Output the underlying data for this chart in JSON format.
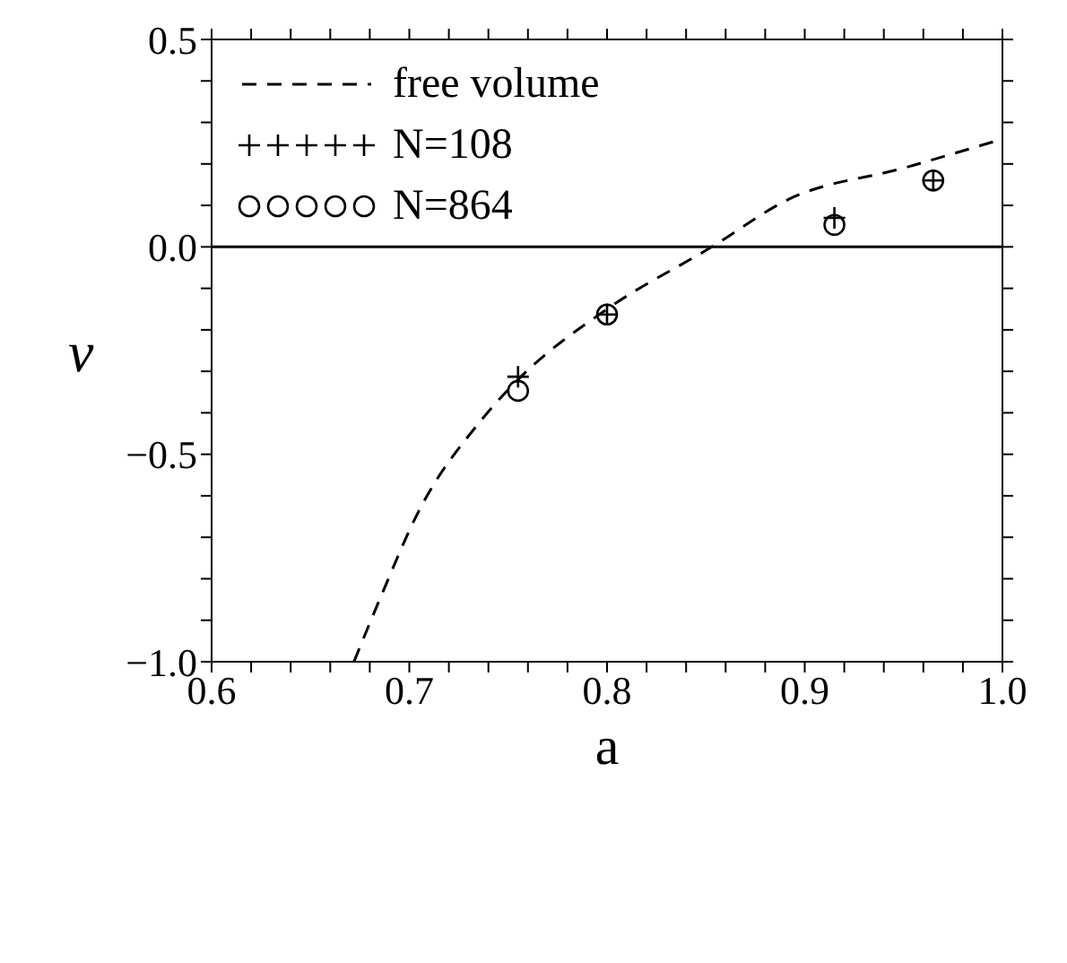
{
  "chart_data": {
    "type": "scatter",
    "xlabel": "a",
    "ylabel": "ν",
    "xlim": [
      0.6,
      1.0
    ],
    "ylim": [
      -1.0,
      0.5
    ],
    "xticks": [
      0.6,
      {
        "value": 0.62,
        "label": null
      },
      {
        "value": 0.64,
        "label": null
      },
      {
        "value": 0.66,
        "label": null
      },
      {
        "value": 0.68,
        "label": null
      },
      0.7,
      {
        "value": 0.72,
        "label": null
      },
      {
        "value": 0.74,
        "label": null
      },
      {
        "value": 0.76,
        "label": null
      },
      {
        "value": 0.78,
        "label": null
      },
      0.8,
      {
        "value": 0.82,
        "label": null
      },
      {
        "value": 0.84,
        "label": null
      },
      {
        "value": 0.86,
        "label": null
      },
      {
        "value": 0.88,
        "label": null
      },
      0.9,
      {
        "value": 0.92,
        "label": null
      },
      {
        "value": 0.94,
        "label": null
      },
      {
        "value": 0.96,
        "label": null
      },
      {
        "value": 0.98,
        "label": null
      },
      {
        "value": 1.0,
        "label": "1.0"
      }
    ],
    "yticks": [
      {
        "value": -1.0,
        "label": "−1.0"
      },
      {
        "value": -0.9,
        "label": null
      },
      {
        "value": -0.8,
        "label": null
      },
      {
        "value": -0.7,
        "label": null
      },
      {
        "value": -0.6,
        "label": null
      },
      {
        "value": -0.5,
        "label": "−0.5"
      },
      {
        "value": -0.4,
        "label": null
      },
      {
        "value": -0.3,
        "label": null
      },
      {
        "value": -0.2,
        "label": null
      },
      {
        "value": -0.1,
        "label": null
      },
      {
        "value": 0.0,
        "label": "0.0"
      },
      {
        "value": 0.1,
        "label": null
      },
      {
        "value": 0.2,
        "label": null
      },
      {
        "value": 0.3,
        "label": null
      },
      {
        "value": 0.4,
        "label": null
      },
      0.5
    ],
    "legend": "top left",
    "ref_lines": [
      {
        "axis": "y",
        "value": 0,
        "color": "#000000",
        "line_style": "solid"
      }
    ],
    "series": [
      {
        "name": "free volume",
        "type": "line",
        "line_style": "dashed",
        "marker": "none",
        "color": "#000000",
        "x": [
          0.672,
          0.685,
          0.705,
          0.736,
          0.755,
          0.8,
          0.853,
          0.892,
          0.95,
          1.0
        ],
        "values": [
          -1.0,
          -0.85,
          -0.635,
          -0.42,
          -0.32,
          -0.15,
          0.0,
          0.115,
          0.19,
          0.26
        ]
      },
      {
        "name": "N=108",
        "marker": "cross",
        "color": "#000000",
        "x": [
          0.755,
          0.8,
          0.915,
          0.965
        ],
        "values": [
          -0.313,
          -0.163,
          0.07,
          0.16
        ]
      },
      {
        "name": "N=864",
        "marker": "circle",
        "color": "#000000",
        "x": [
          0.755,
          0.8,
          0.915,
          0.965
        ],
        "values": [
          -0.347,
          -0.163,
          0.053,
          0.16
        ]
      }
    ]
  }
}
